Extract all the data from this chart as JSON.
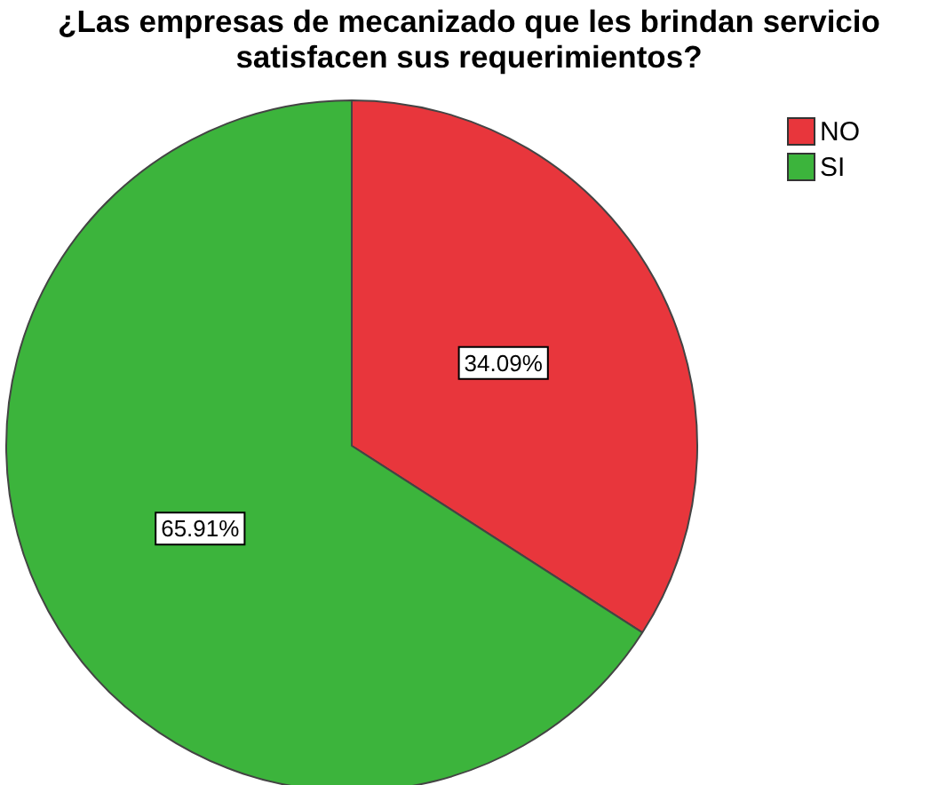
{
  "chart_data": {
    "type": "pie",
    "title": "¿Las empresas de mecanizado que les brindan servicio satisfacen sus requerimientos?",
    "categories": [
      "NO",
      "SI"
    ],
    "values": [
      34.09,
      65.91
    ],
    "colors": [
      "#e8363c",
      "#3cb43c"
    ],
    "value_labels": [
      "34.09%",
      "65.91%"
    ],
    "legend": "top right"
  }
}
